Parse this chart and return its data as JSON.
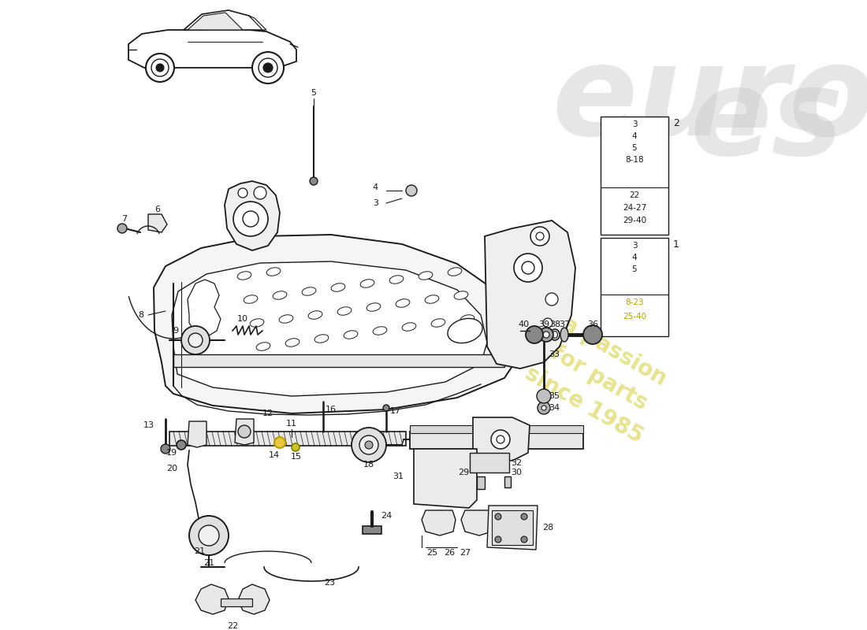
{
  "bg_color": "#ffffff",
  "lc": "#1a1a1a",
  "box2_items": [
    "3",
    "4",
    "5",
    "8-18",
    "22",
    "24-27",
    "29-40"
  ],
  "box1_items": [
    "3",
    "4",
    "5",
    "8-23",
    "25-40"
  ],
  "box1_highlight": [
    "8-23",
    "25-40"
  ],
  "highlight_color": "#b8a000",
  "watermark_gray": "#c8c8c8",
  "watermark_yellow": "#d4cc30",
  "watermark_alpha": 0.45,
  "watermark_yellow_alpha": 0.55
}
